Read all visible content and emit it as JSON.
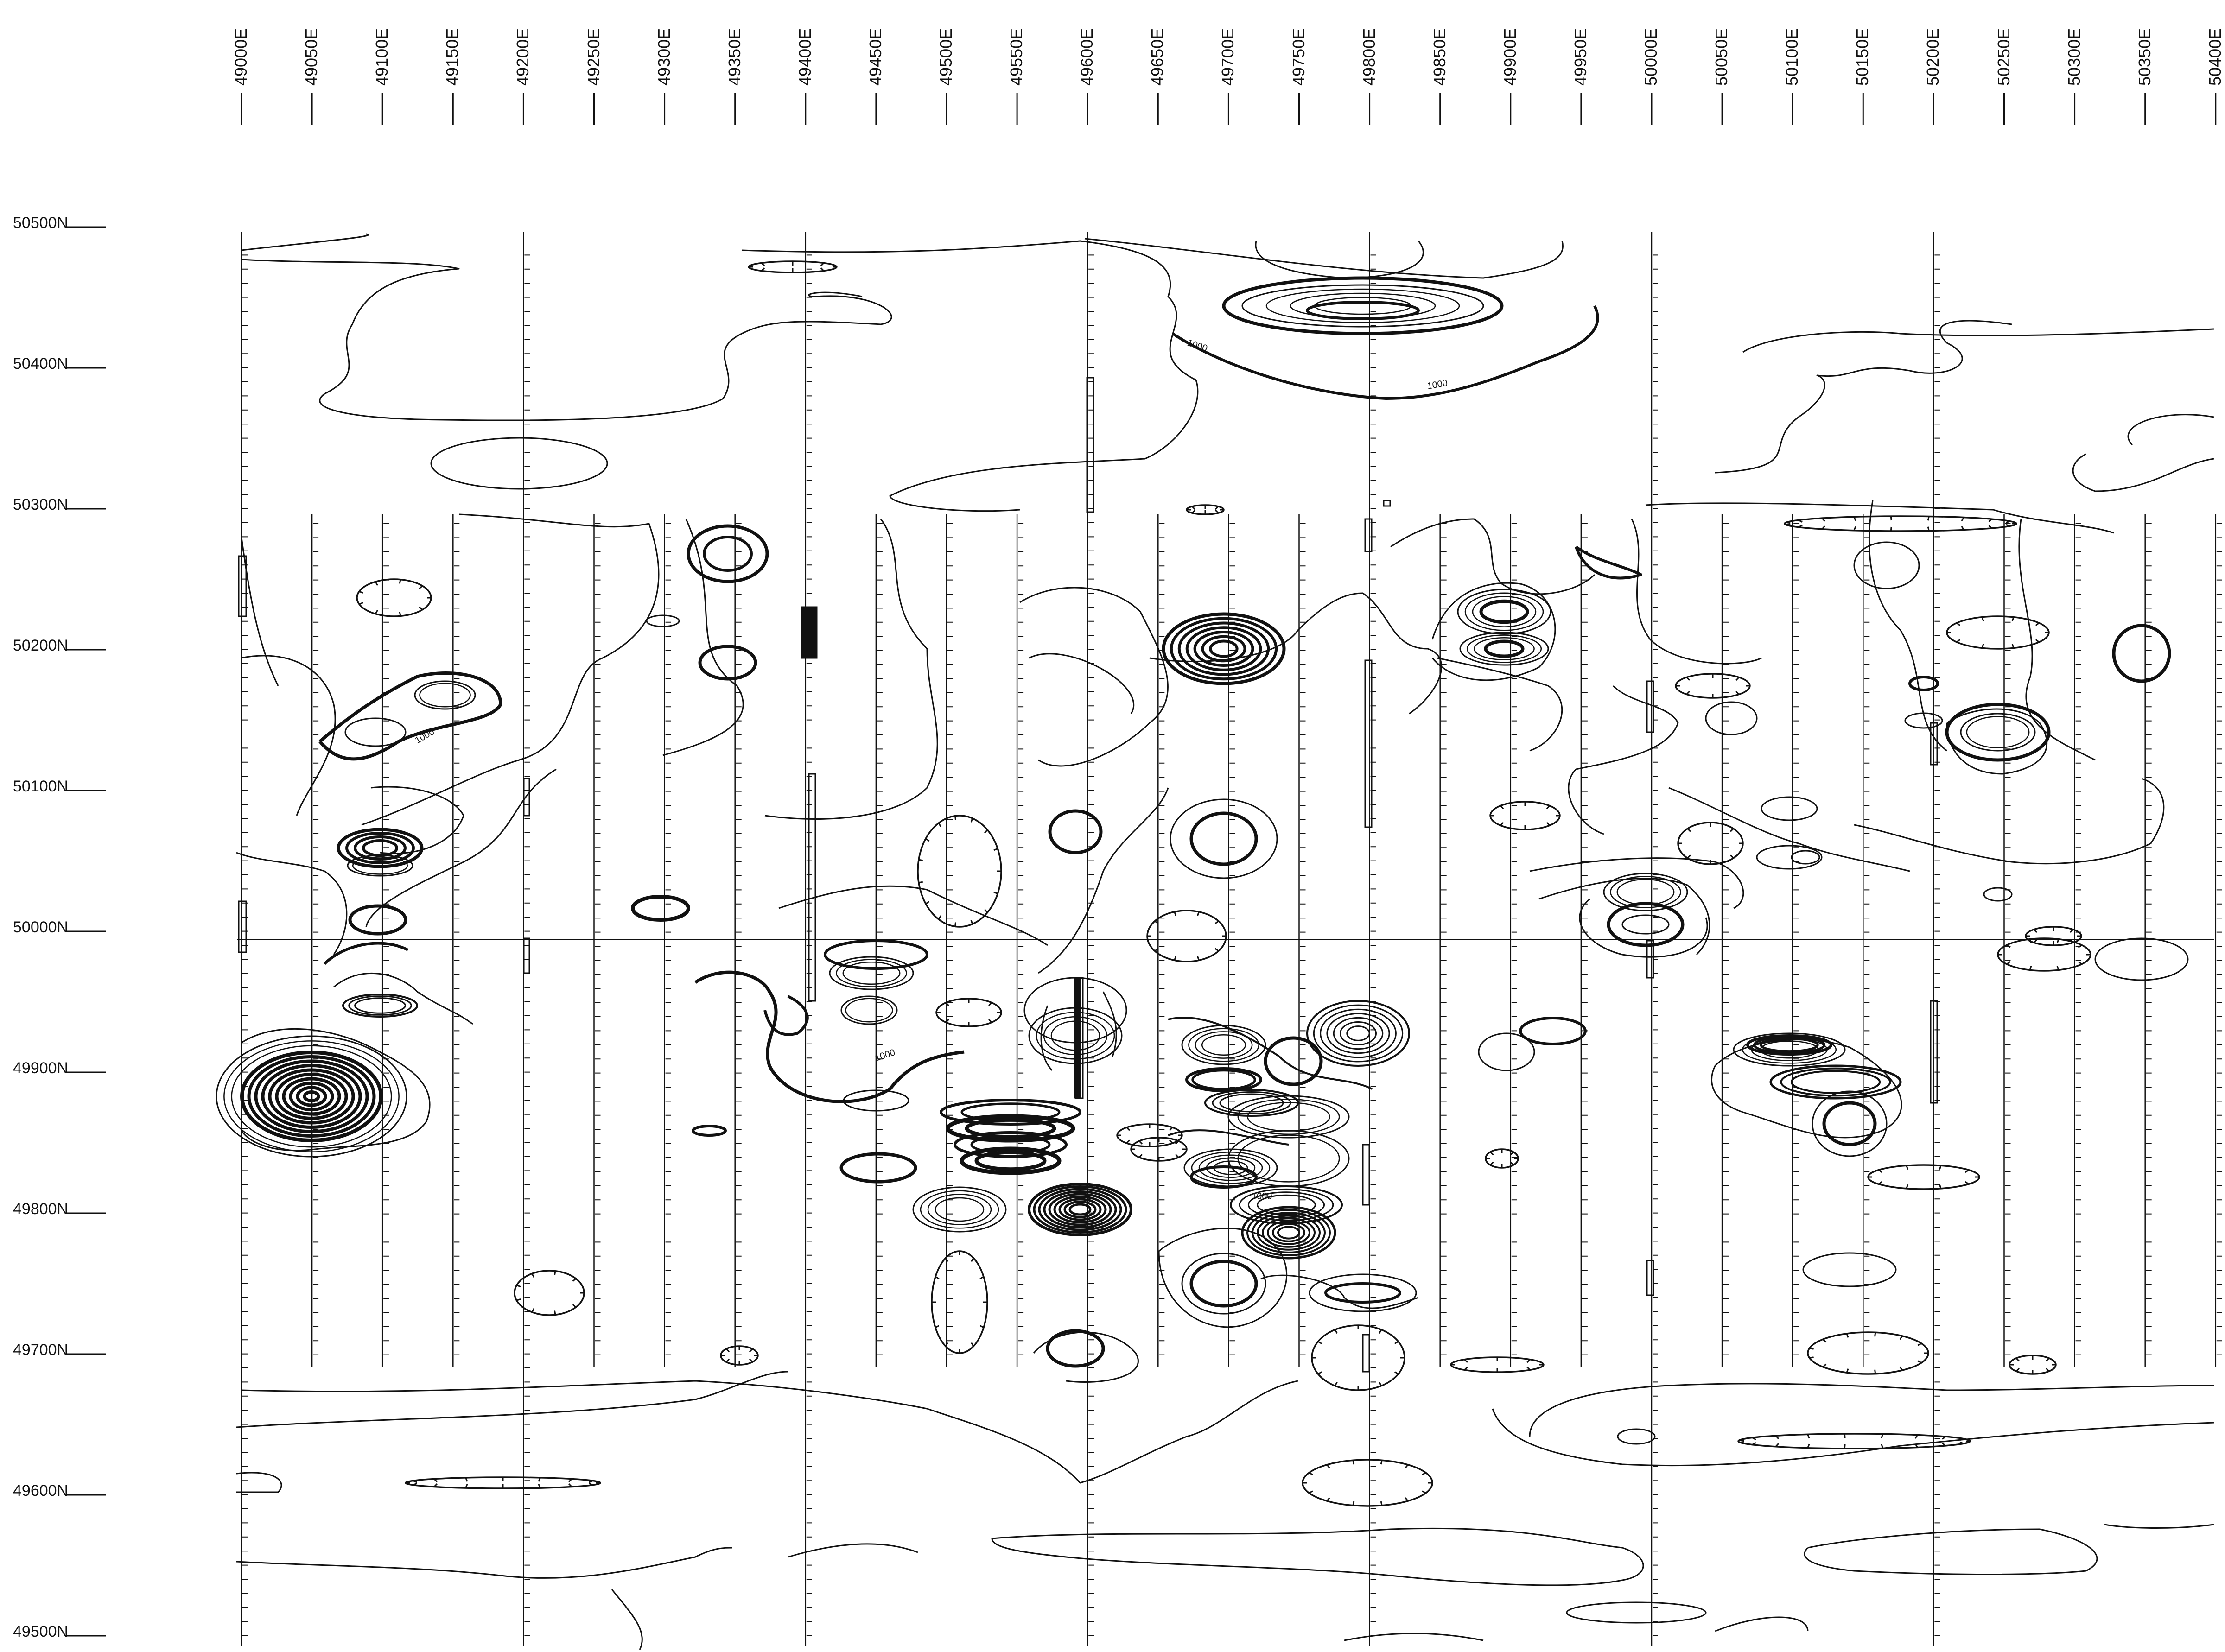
{
  "map": {
    "colors": {
      "ink": "#111111",
      "background": "#ffffff"
    },
    "easting_labels": [
      "49000E",
      "49050E",
      "49100E",
      "49150E",
      "49200E",
      "49250E",
      "49300E",
      "49350E",
      "49400E",
      "49450E",
      "49500E",
      "49550E",
      "49600E",
      "49650E",
      "49700E",
      "49750E",
      "49800E",
      "49850E",
      "49900E",
      "49950E",
      "50000E",
      "50050E",
      "50100E",
      "50150E",
      "50200E",
      "50250E",
      "50300E",
      "50350E",
      "50400E"
    ],
    "northing_labels": [
      "50500N",
      "50400N",
      "50300N",
      "50200N",
      "50100N",
      "50000N",
      "49900N",
      "49800N",
      "49700N",
      "49600N",
      "49500N"
    ],
    "contour_labels": [
      "1000",
      "1000",
      "1000",
      "1000",
      "1000"
    ]
  }
}
